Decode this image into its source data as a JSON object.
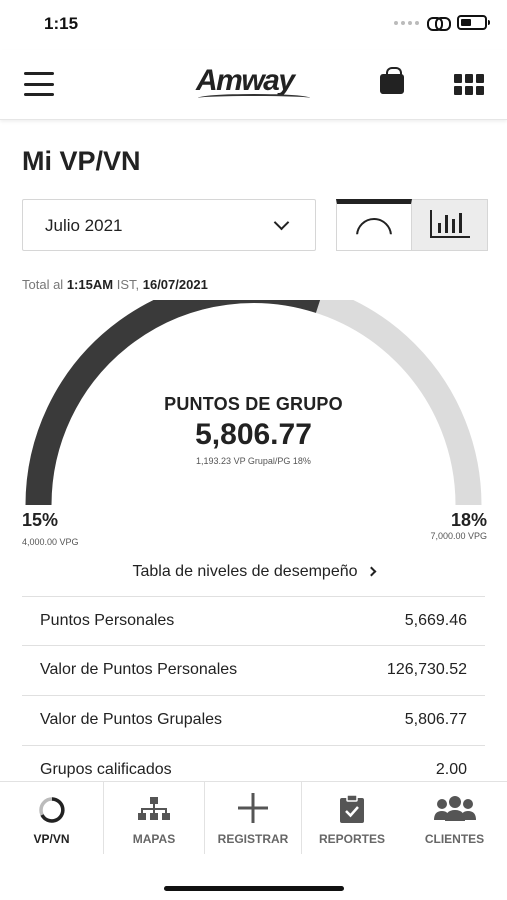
{
  "status_bar": {
    "time": "1:15"
  },
  "header": {
    "brand": "Amway"
  },
  "page": {
    "title": "Mi VP/VN"
  },
  "filters": {
    "month": "Julio 2021"
  },
  "total": {
    "prefix": "Total al",
    "time": "1:15AM",
    "timezone": "IST,",
    "date": "16/07/2021"
  },
  "gauge": {
    "title": "PUNTOS DE GRUPO",
    "value": "5,806.77",
    "subtitle": "1,193.23 VP Grupal/PG 18%",
    "progress": 0.6,
    "left_pct": "15%",
    "left_vpg": "4,000.00 VPG",
    "right_pct": "18%",
    "right_vpg": "7,000.00 VPG",
    "fill_color": "#3a3a3a",
    "track_color": "#dcdcdc"
  },
  "performance_link": "Tabla de niveles de desempeño",
  "stats": [
    {
      "label": "Puntos Personales",
      "value": "5,669.46"
    },
    {
      "label": "Valor de Puntos Personales",
      "value": "126,730.52"
    },
    {
      "label": "Valor de Puntos Grupales",
      "value": "5,806.77"
    },
    {
      "label": "Grupos calificados",
      "value": "2.00"
    }
  ],
  "tabs": [
    {
      "label": "VP/VN",
      "icon": "circle-progress-icon",
      "active": true
    },
    {
      "label": "MAPAS",
      "icon": "org-chart-icon",
      "active": false
    },
    {
      "label": "REGISTRAR",
      "icon": "plus-icon",
      "active": false
    },
    {
      "label": "REPORTES",
      "icon": "clipboard-check-icon",
      "active": false
    },
    {
      "label": "CLIENTES",
      "icon": "people-icon",
      "active": false
    }
  ]
}
